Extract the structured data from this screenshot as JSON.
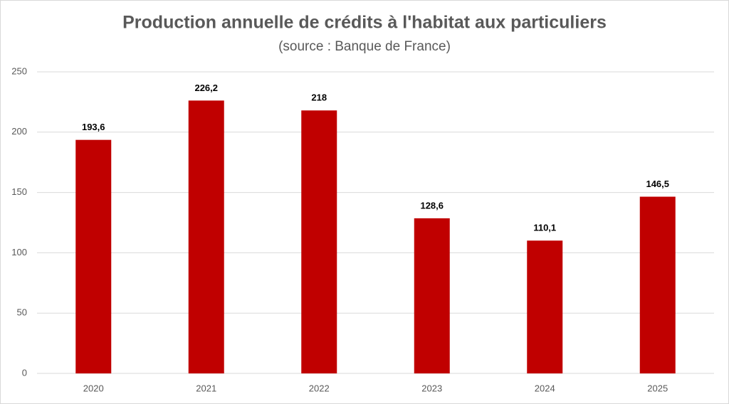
{
  "chart_data": {
    "type": "bar",
    "title": "Production annuelle de crédits à l'habitat aux particuliers",
    "subtitle": "(source : Banque de France)",
    "categories": [
      "2020",
      "2021",
      "2022",
      "2023",
      "2024",
      "2025"
    ],
    "values": [
      193.6,
      226.2,
      218,
      128.6,
      110.1,
      146.5
    ],
    "value_labels": [
      "193,6",
      "226,2",
      "218",
      "128,6",
      "110,1",
      "146,5"
    ],
    "color": "#c00000",
    "ylim": [
      0,
      250
    ],
    "yticks": [
      0,
      50,
      100,
      150,
      200,
      250
    ],
    "grid": true
  }
}
